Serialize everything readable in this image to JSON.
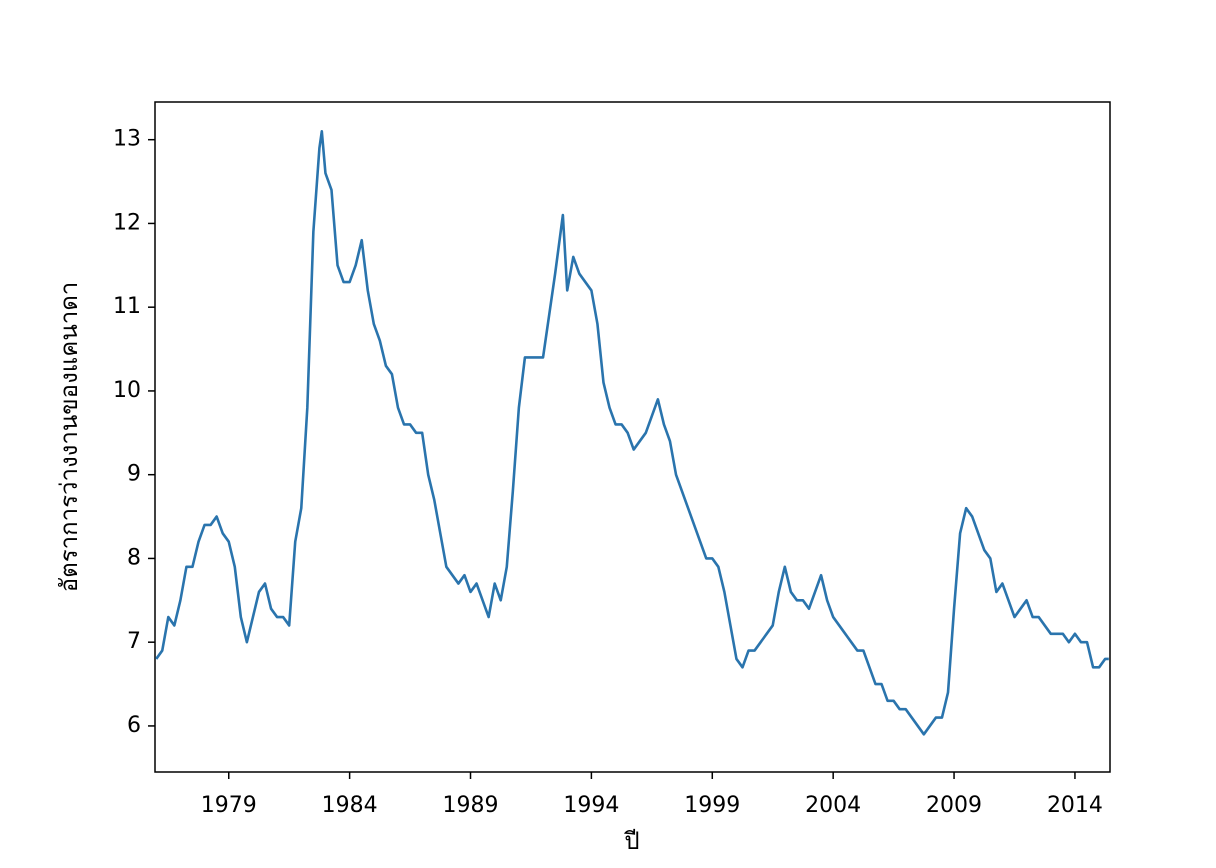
{
  "chart_data": {
    "type": "line",
    "x_label": "ปี",
    "y_label": "อัตราการว่างงานของแคนาดา",
    "xlim": [
      1975.95,
      2015.45
    ],
    "ylim": [
      5.45,
      13.45
    ],
    "xticks": [
      1979,
      1984,
      1989,
      1994,
      1999,
      2004,
      2009,
      2014
    ],
    "yticks": [
      6,
      7,
      8,
      9,
      10,
      11,
      12,
      13
    ],
    "grid": false,
    "x": [
      1976,
      1976.25,
      1976.5,
      1976.75,
      1977,
      1977.25,
      1977.5,
      1977.75,
      1978,
      1978.25,
      1978.5,
      1978.75,
      1979,
      1979.25,
      1979.5,
      1979.75,
      1980,
      1980.25,
      1980.5,
      1980.75,
      1981,
      1981.25,
      1981.5,
      1981.75,
      1982,
      1982.25,
      1982.5,
      1982.75,
      1982.85,
      1983,
      1983.25,
      1983.5,
      1983.75,
      1984,
      1984.25,
      1984.5,
      1984.75,
      1985,
      1985.25,
      1985.5,
      1985.75,
      1986,
      1986.25,
      1986.5,
      1986.75,
      1987,
      1987.25,
      1987.5,
      1987.75,
      1988,
      1988.25,
      1988.5,
      1988.75,
      1989,
      1989.25,
      1989.5,
      1989.75,
      1990,
      1990.25,
      1990.5,
      1990.75,
      1991,
      1991.25,
      1991.5,
      1991.75,
      1992,
      1992.25,
      1992.5,
      1992.82,
      1993,
      1993.25,
      1993.5,
      1993.75,
      1994,
      1994.25,
      1994.5,
      1994.75,
      1995,
      1995.25,
      1995.5,
      1995.75,
      1996,
      1996.25,
      1996.5,
      1996.75,
      1997,
      1997.25,
      1997.5,
      1997.75,
      1998,
      1998.25,
      1998.5,
      1998.75,
      1999,
      1999.25,
      1999.5,
      1999.75,
      2000,
      2000.25,
      2000.5,
      2000.75,
      2001,
      2001.25,
      2001.5,
      2001.75,
      2002,
      2002.25,
      2002.5,
      2002.75,
      2003,
      2003.25,
      2003.5,
      2003.75,
      2004,
      2004.25,
      2004.5,
      2004.75,
      2005,
      2005.25,
      2005.5,
      2005.75,
      2006,
      2006.25,
      2006.5,
      2006.75,
      2007,
      2007.25,
      2007.5,
      2007.75,
      2008,
      2008.25,
      2008.5,
      2008.75,
      2009,
      2009.25,
      2009.5,
      2009.75,
      2010,
      2010.25,
      2010.5,
      2010.75,
      2011,
      2011.25,
      2011.5,
      2011.75,
      2012,
      2012.25,
      2012.5,
      2012.75,
      2013,
      2013.25,
      2013.5,
      2013.75,
      2014,
      2014.25,
      2014.5,
      2014.75,
      2015,
      2015.25,
      2015.4
    ],
    "series": [
      {
        "color": "#2a74ad",
        "values": [
          6.8,
          6.9,
          7.3,
          7.2,
          7.5,
          7.9,
          7.9,
          8.2,
          8.4,
          8.4,
          8.5,
          8.3,
          8.2,
          7.9,
          7.3,
          7.0,
          7.3,
          7.6,
          7.7,
          7.4,
          7.3,
          7.3,
          7.2,
          8.2,
          8.6,
          9.8,
          11.9,
          12.9,
          13.1,
          12.6,
          12.4,
          11.5,
          11.3,
          11.3,
          11.5,
          11.8,
          11.2,
          10.8,
          10.6,
          10.3,
          10.2,
          9.8,
          9.6,
          9.6,
          9.5,
          9.5,
          9.0,
          8.7,
          8.3,
          7.9,
          7.8,
          7.7,
          7.8,
          7.6,
          7.7,
          7.5,
          7.3,
          7.7,
          7.5,
          7.9,
          8.8,
          9.8,
          10.4,
          10.4,
          10.4,
          10.4,
          10.9,
          11.4,
          12.1,
          11.2,
          11.6,
          11.4,
          11.3,
          11.2,
          10.8,
          10.1,
          9.8,
          9.6,
          9.6,
          9.5,
          9.3,
          9.4,
          9.5,
          9.7,
          9.9,
          9.6,
          9.4,
          9.0,
          8.8,
          8.6,
          8.4,
          8.2,
          8.0,
          8.0,
          7.9,
          7.6,
          7.2,
          6.8,
          6.7,
          6.9,
          6.9,
          7.0,
          7.1,
          7.2,
          7.6,
          7.9,
          7.6,
          7.5,
          7.5,
          7.4,
          7.6,
          7.8,
          7.5,
          7.3,
          7.2,
          7.1,
          7.0,
          6.9,
          6.9,
          6.7,
          6.5,
          6.5,
          6.3,
          6.3,
          6.2,
          6.2,
          6.1,
          6.0,
          5.9,
          6.0,
          6.1,
          6.1,
          6.4,
          7.4,
          8.3,
          8.6,
          8.5,
          8.3,
          8.1,
          8.0,
          7.6,
          7.7,
          7.5,
          7.3,
          7.4,
          7.5,
          7.3,
          7.3,
          7.2,
          7.1,
          7.1,
          7.1,
          7.0,
          7.1,
          7.0,
          7.0,
          6.7,
          6.7,
          6.8,
          6.8
        ]
      }
    ]
  }
}
